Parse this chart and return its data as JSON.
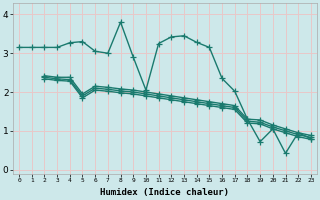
{
  "background_color": "#cde8ea",
  "grid_color": "#e8c8c8",
  "line_color": "#1a7a6e",
  "marker": "+",
  "markersize": 4,
  "linewidth": 1.0,
  "xlabel": "Humidex (Indice chaleur)",
  "xlim": [
    -0.5,
    23.5
  ],
  "ylim": [
    -0.1,
    4.3
  ],
  "xticks": [
    0,
    1,
    2,
    3,
    4,
    5,
    6,
    7,
    8,
    9,
    10,
    11,
    12,
    13,
    14,
    15,
    16,
    17,
    18,
    19,
    20,
    21,
    22,
    23
  ],
  "yticks": [
    0,
    1,
    2,
    3,
    4
  ],
  "series": [
    {
      "x": [
        0,
        1,
        2,
        3,
        4,
        5,
        6,
        7,
        8,
        9,
        10,
        11,
        12,
        13,
        14,
        15,
        16,
        17,
        18,
        19,
        20,
        21,
        22,
        23
      ],
      "y": [
        3.15,
        3.15,
        3.15,
        3.15,
        3.27,
        3.3,
        3.05,
        3.0,
        3.8,
        2.9,
        2.05,
        3.25,
        3.42,
        3.45,
        3.28,
        3.15,
        2.35,
        2.02,
        1.3,
        0.72,
        1.05,
        0.42,
        0.95,
        0.8
      ]
    },
    {
      "x": [
        2,
        3,
        4,
        5,
        6,
        7,
        8,
        9,
        10,
        11,
        12,
        13,
        14,
        15,
        16,
        17,
        18,
        19,
        20,
        21,
        22,
        23
      ],
      "y": [
        2.42,
        2.38,
        2.38,
        1.95,
        2.15,
        2.12,
        2.08,
        2.05,
        2.0,
        1.95,
        1.9,
        1.85,
        1.8,
        1.75,
        1.7,
        1.65,
        1.3,
        1.28,
        1.15,
        1.05,
        0.95,
        0.88
      ]
    },
    {
      "x": [
        2,
        3,
        4,
        5,
        6,
        7,
        8,
        9,
        10,
        11,
        12,
        13,
        14,
        15,
        16,
        17,
        18,
        19,
        20,
        21,
        22,
        23
      ],
      "y": [
        2.38,
        2.34,
        2.32,
        1.9,
        2.1,
        2.07,
        2.03,
        2.0,
        1.95,
        1.9,
        1.85,
        1.8,
        1.75,
        1.7,
        1.65,
        1.6,
        1.25,
        1.22,
        1.1,
        1.0,
        0.9,
        0.83
      ]
    },
    {
      "x": [
        2,
        3,
        4,
        5,
        6,
        7,
        8,
        9,
        10,
        11,
        12,
        13,
        14,
        15,
        16,
        17,
        18,
        19,
        20,
        21,
        22,
        23
      ],
      "y": [
        2.34,
        2.3,
        2.28,
        1.85,
        2.05,
        2.02,
        1.98,
        1.95,
        1.9,
        1.85,
        1.8,
        1.75,
        1.7,
        1.65,
        1.6,
        1.55,
        1.2,
        1.18,
        1.05,
        0.95,
        0.85,
        0.78
      ]
    }
  ]
}
